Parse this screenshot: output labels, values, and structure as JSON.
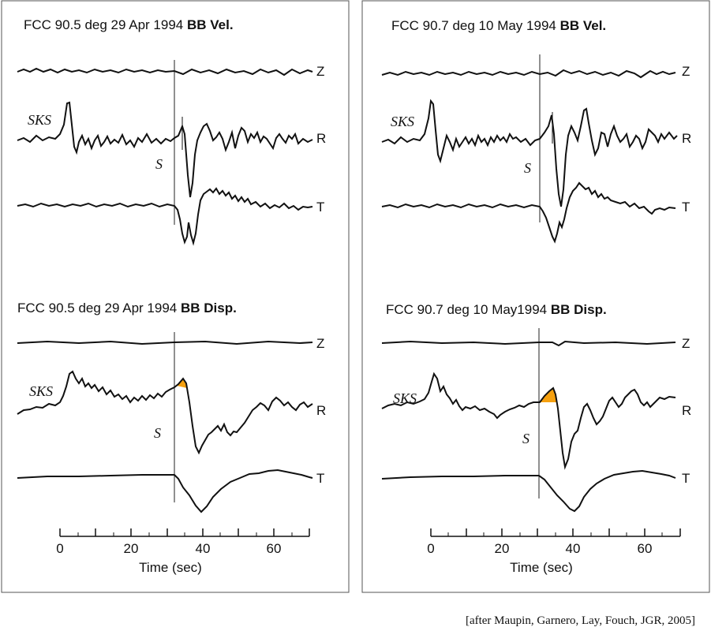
{
  "panels": [
    {
      "id": "left",
      "vel_title": {
        "prefix": "FCC  90.5 deg 29 Apr 1994 ",
        "bold": "BB Vel."
      },
      "disp_title": {
        "prefix": "FCC  90.5 deg 29 Apr 1994 ",
        "bold": "BB Disp."
      },
      "s_arrival_time": 32
    },
    {
      "id": "right",
      "vel_title": {
        "prefix": "FCC  90.7 deg 10 May 1994 ",
        "bold": "BB Vel."
      },
      "disp_title": {
        "prefix": "FCC  90.7 deg 10 May1994 ",
        "bold": "BB Disp."
      },
      "s_arrival_time": 30
    }
  ],
  "labels": {
    "z": "Z",
    "r": "R",
    "t": "T",
    "sks": "SKS",
    "s": "S"
  },
  "axis": {
    "title": "Time (sec)",
    "ticks": [
      "0",
      "20",
      "40",
      "60"
    ],
    "range": [
      0,
      70
    ]
  },
  "colors": {
    "trace": "#111111",
    "highlight": "#f5a00f",
    "frame": "#555555"
  },
  "citation": "[after Maupin, Garnero, Lay, Fouch, JGR, 2005]"
}
